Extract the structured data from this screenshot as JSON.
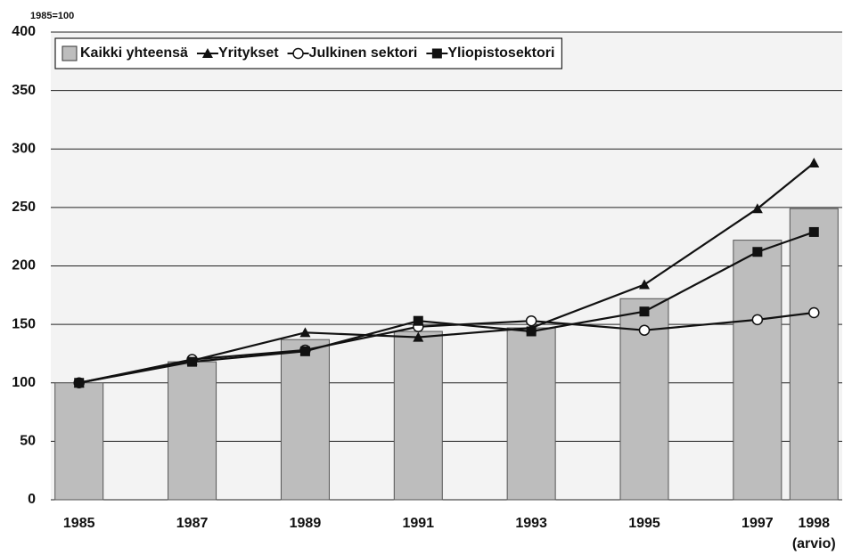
{
  "chart_data": {
    "type": "bar",
    "subtitle": "1985=100",
    "x": [
      1985,
      1987,
      1989,
      1991,
      1993,
      1995,
      1997,
      1998
    ],
    "x_note": "(arvio)",
    "xlim": [
      1984.5,
      1998.5
    ],
    "ylim": [
      0,
      400
    ],
    "yticks": [
      0,
      50,
      100,
      150,
      200,
      250,
      300,
      350,
      400
    ],
    "grid": true,
    "legend": "top-left",
    "series": [
      {
        "name": "Kaikki yhteensä",
        "type": "bar",
        "color": "#bdbdbd",
        "values": [
          100,
          118,
          137,
          144,
          147,
          172,
          222,
          249
        ]
      },
      {
        "name": "Yritykset",
        "type": "line",
        "marker": "triangle",
        "color": "#111111",
        "values": [
          100,
          119,
          143,
          139,
          147,
          184,
          249,
          288
        ]
      },
      {
        "name": "Julkinen sektori",
        "type": "line",
        "marker": "open-circle",
        "color": "#111111",
        "values": [
          100,
          120,
          128,
          148,
          153,
          145,
          154,
          160
        ]
      },
      {
        "name": "Yliopistosektori",
        "type": "line",
        "marker": "square",
        "color": "#111111",
        "values": [
          100,
          118,
          127,
          153,
          144,
          161,
          212,
          229
        ]
      }
    ]
  }
}
